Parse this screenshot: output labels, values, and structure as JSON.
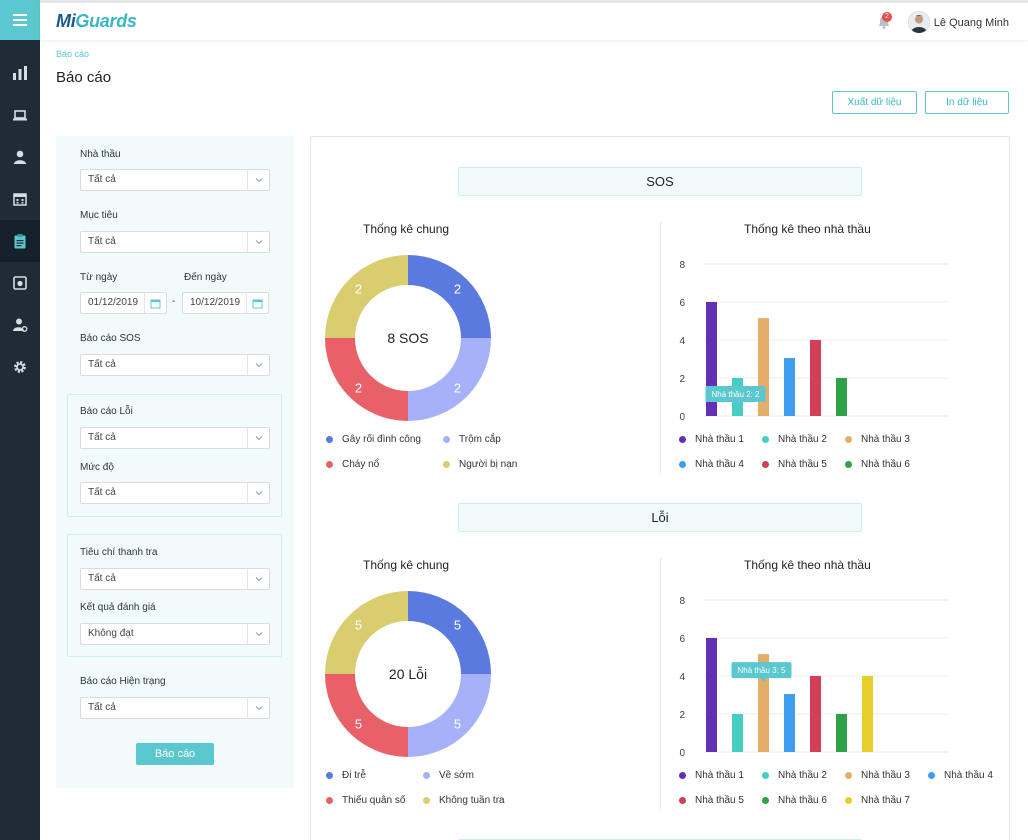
{
  "header": {
    "logo_prefix": "Mi",
    "logo_suffix": "Guards",
    "notification_count": "2",
    "user_name": "Lê Quang Minh"
  },
  "page": {
    "breadcrumb": "Báo cáo",
    "title": "Báo cáo",
    "export_label": "Xuất dữ liệu",
    "print_label": "In dữ liệu"
  },
  "filters": {
    "contractor_label": "Nhà thầu",
    "contractor_value": "Tất cả",
    "target_label": "Mục tiêu",
    "target_value": "Tất cả",
    "from_label": "Từ ngày",
    "from_value": "01/12/2019",
    "to_label": "Đến ngày",
    "to_value": "10/12/2019",
    "dash": "-",
    "sos_label": "Báo cáo SOS",
    "sos_value": "Tất cả",
    "error_label": "Báo cáo Lỗi",
    "error_value": "Tất cả",
    "level_label": "Mức độ",
    "level_value": "Tất cả",
    "criteria_label": "Tiêu chí thanh tra",
    "criteria_value": "Tất cả",
    "result_label": "Kết quả đánh giá",
    "result_value": "Không đạt",
    "status_label": "Báo cáo Hiện trạng",
    "status_value": "Tất cả",
    "submit_label": "Báo cáo"
  },
  "sections": [
    {
      "title": "SOS",
      "pie_title": "Thống kê chung",
      "bar_title": "Thống kê theo nhà thầu",
      "pie_center": "8 SOS",
      "tooltip": "Nhà thầu 2: 2",
      "tooltip_index": 1
    },
    {
      "title": "Lỗi",
      "pie_title": "Thống kê chung",
      "bar_title": "Thống kê theo nhà thầu",
      "pie_center": "20 Lỗi",
      "tooltip": "Nhà thầu 3: 5",
      "tooltip_index": 2
    }
  ],
  "chart_data": [
    {
      "type": "pie",
      "title": "Thống kê chung",
      "center_label": "8 SOS",
      "categories": [
        "Gây rối đình công",
        "Trộm cắp",
        "Cháy nổ",
        "Người bị nạn"
      ],
      "values": [
        2,
        2,
        2,
        2
      ],
      "colors": [
        "#5b7ae0",
        "#a7b1fa",
        "#e86169",
        "#dacd70"
      ],
      "legend": "bottom"
    },
    {
      "type": "bar",
      "title": "Thống kê theo nhà thầu",
      "categories": [
        "Nhà thầu 1",
        "Nhà thầu 2",
        "Nhà thầu 3",
        "Nhà thầu 4",
        "Nhà thầu 5",
        "Nhà thầu 6"
      ],
      "values": [
        6,
        2,
        5.15,
        3.05,
        4,
        2
      ],
      "colors": [
        "#6330b5",
        "#45cfc3",
        "#e5ad6a",
        "#3e9eee",
        "#d23f56",
        "#2ea245"
      ],
      "ylim": [
        0,
        8
      ],
      "yticks": [
        0,
        2,
        4,
        6,
        8
      ],
      "grid": true,
      "legend": "bottom"
    },
    {
      "type": "pie",
      "title": "Thống kê chung",
      "center_label": "20 Lỗi",
      "categories": [
        "Đi trễ",
        "Về sớm",
        "Thiếu quân số",
        "Không tuần tra"
      ],
      "values": [
        5,
        5,
        5,
        5
      ],
      "colors": [
        "#5b7ae0",
        "#a7b1fa",
        "#e86169",
        "#dacd70"
      ],
      "legend": "bottom"
    },
    {
      "type": "bar",
      "title": "Thống kê theo nhà thầu",
      "categories": [
        "Nhà thầu 1",
        "Nhà thầu 2",
        "Nhà thầu 3",
        "Nhà thầu 4",
        "Nhà thầu 5",
        "Nhà thầu 6",
        "Nhà thầu 7"
      ],
      "values": [
        6,
        2,
        5.15,
        3.05,
        4,
        2,
        4
      ],
      "colors": [
        "#6330b5",
        "#45cfc3",
        "#e5ad6a",
        "#3e9eee",
        "#d23f56",
        "#2ea245",
        "#e6cf2a"
      ],
      "ylim": [
        0,
        8
      ],
      "yticks": [
        0,
        2,
        4,
        6,
        8
      ],
      "grid": true,
      "legend": "bottom"
    }
  ],
  "icons": {
    "menu": "hamburger-icon",
    "nav": [
      "bar-chart-icon",
      "laptop-icon",
      "user-icon",
      "calendar-icon",
      "clipboard-icon",
      "camera-icon",
      "users-settings-icon",
      "gear-icon"
    ],
    "bell": "bell-icon",
    "calendar": "calendar-icon",
    "chevron": "chevron-down-icon"
  },
  "colors": {
    "accent": "#5bc8cf",
    "sidebar": "#1f2b36",
    "panel": "#f1fbfc"
  }
}
